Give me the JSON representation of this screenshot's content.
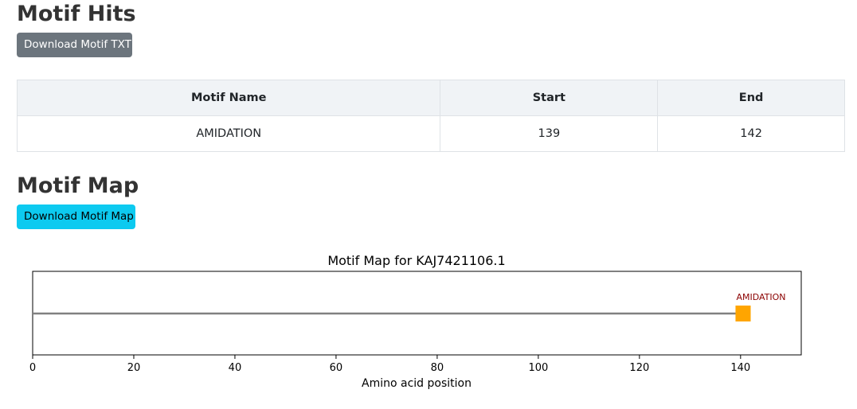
{
  "motif_hits": {
    "title": "Motif Hits",
    "download_button": "Download Motif TXT",
    "table": {
      "headers": [
        "Motif Name",
        "Start",
        "End"
      ],
      "rows": [
        [
          "AMIDATION",
          "139",
          "142"
        ]
      ]
    }
  },
  "motif_map": {
    "title": "Motif Map",
    "download_button": "Download Motif Map"
  },
  "chart_data": {
    "type": "scatter",
    "title": "Motif Map for KAJ7421106.1",
    "xlabel": "Amino acid position",
    "ylabel": "",
    "xlim": [
      0,
      152
    ],
    "x_ticks": [
      0,
      20,
      40,
      60,
      80,
      100,
      120,
      140
    ],
    "y_ticks_shown": false,
    "sequence_line": {
      "start": 0,
      "end": 142,
      "color": "#808080"
    },
    "motifs": [
      {
        "name": "AMIDATION",
        "start": 139,
        "end": 142,
        "color": "#ffa500",
        "label_color": "#8b0000"
      }
    ],
    "grid": false
  }
}
